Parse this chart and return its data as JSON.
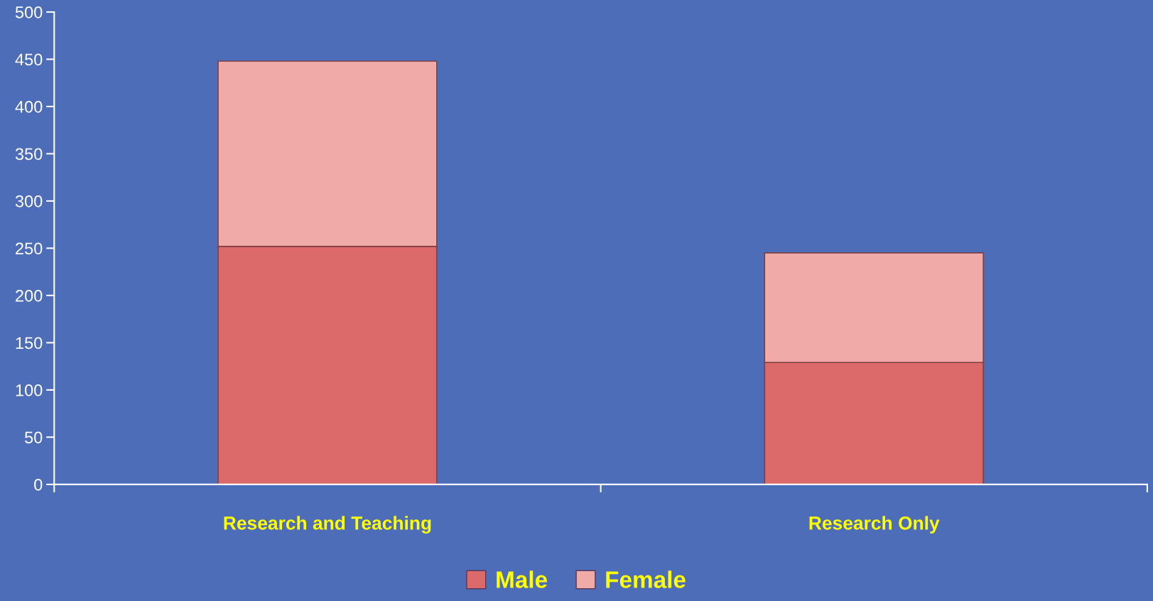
{
  "chart_data": {
    "type": "bar",
    "stacked": true,
    "categories": [
      "Research and Teaching",
      "Research Only"
    ],
    "series": [
      {
        "name": "Male",
        "color": "#dc6a6a",
        "values": [
          252,
          129
        ]
      },
      {
        "name": "Female",
        "color": "#f0aaa8",
        "values": [
          196,
          116
        ]
      }
    ],
    "ylim": [
      0,
      500
    ],
    "yticks": [
      0,
      50,
      100,
      150,
      200,
      250,
      300,
      350,
      400,
      450,
      500
    ],
    "grid": false,
    "legend": "bottom"
  }
}
